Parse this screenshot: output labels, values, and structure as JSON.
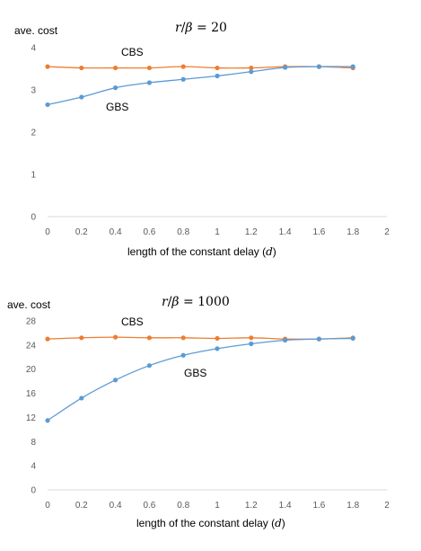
{
  "chart_data": [
    {
      "type": "line",
      "title": "r/β = 20",
      "title_parts": {
        "r": "r",
        "slash": "/",
        "beta": "β",
        "eq": " = 20"
      },
      "ylabel": "ave. cost",
      "xlabel": "length of the constant delay (d)",
      "xlabel_parts": {
        "text": "length of the constant delay (",
        "var": "d",
        "close": ")"
      },
      "xlim": [
        0,
        2
      ],
      "ylim": [
        0,
        4
      ],
      "xticks": [
        "0",
        "0.2",
        "0.4",
        "0.6",
        "0.8",
        "1",
        "1.2",
        "1.4",
        "1.6",
        "1.8",
        "2"
      ],
      "yticks": [
        "0",
        "1",
        "2",
        "3",
        "4"
      ],
      "grid": false,
      "x": [
        0,
        0.2,
        0.4,
        0.6,
        0.8,
        1.0,
        1.2,
        1.4,
        1.6,
        1.8
      ],
      "series": [
        {
          "name": "CBS",
          "color": "#ED7D31",
          "values": [
            3.55,
            3.52,
            3.52,
            3.52,
            3.55,
            3.52,
            3.52,
            3.55,
            3.55,
            3.52
          ]
        },
        {
          "name": "GBS",
          "color": "#5B9BD5",
          "values": [
            2.65,
            2.83,
            3.05,
            3.17,
            3.25,
            3.33,
            3.43,
            3.53,
            3.55,
            3.55
          ]
        }
      ]
    },
    {
      "type": "line",
      "title": "r/β = 1000",
      "title_parts": {
        "r": "r",
        "slash": "/",
        "beta": "β",
        "eq": " = 1000"
      },
      "ylabel": "ave. cost",
      "xlabel": "length of the constant delay (d)",
      "xlabel_parts": {
        "text": "length of the constant delay (",
        "var": "d",
        "close": ")"
      },
      "xlim": [
        0,
        2
      ],
      "ylim": [
        0,
        28
      ],
      "xticks": [
        "0",
        "0.2",
        "0.4",
        "0.6",
        "0.8",
        "1",
        "1.2",
        "1.4",
        "1.6",
        "1.8",
        "2"
      ],
      "yticks": [
        "0",
        "4",
        "8",
        "12",
        "16",
        "20",
        "24",
        "28"
      ],
      "grid": false,
      "x": [
        0,
        0.2,
        0.4,
        0.6,
        0.8,
        1.0,
        1.2,
        1.4,
        1.6,
        1.8
      ],
      "series": [
        {
          "name": "CBS",
          "color": "#ED7D31",
          "values": [
            25.0,
            25.2,
            25.3,
            25.2,
            25.2,
            25.1,
            25.2,
            25.0,
            25.0,
            25.2
          ]
        },
        {
          "name": "GBS",
          "color": "#5B9BD5",
          "values": [
            11.5,
            15.2,
            18.2,
            20.6,
            22.3,
            23.4,
            24.2,
            24.8,
            25.0,
            25.1
          ]
        }
      ]
    }
  ]
}
